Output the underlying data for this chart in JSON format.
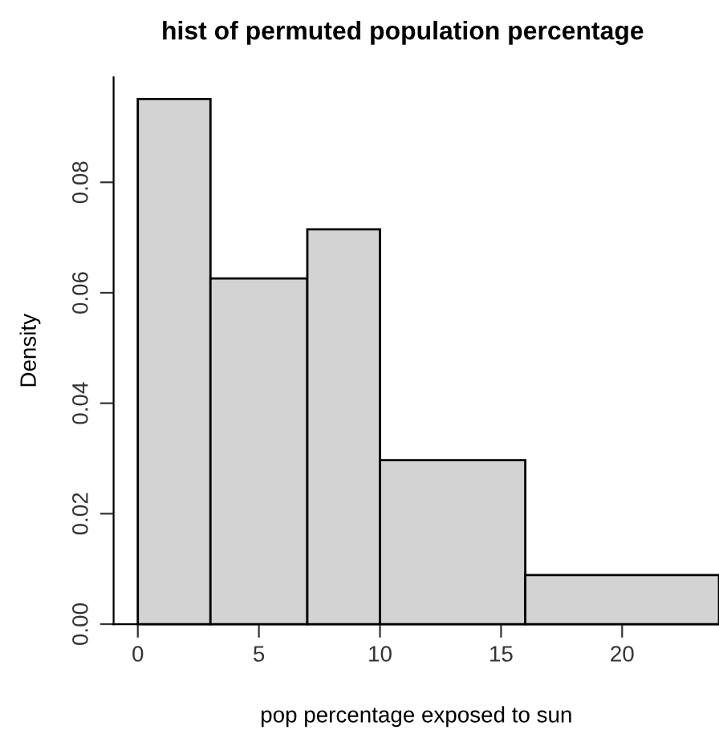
{
  "chart_data": {
    "type": "histogram",
    "title": "hist of permuted population percentage",
    "xlabel": "pop percentage exposed to sun",
    "ylabel": "Density",
    "bins": [
      0,
      3,
      7,
      10,
      16,
      24
    ],
    "values": [
      0.0951,
      0.0626,
      0.0715,
      0.0297,
      0.0089
    ],
    "color": "#d3d3d3",
    "xlim": [
      -1,
      24
    ],
    "ylim": [
      0,
      0.099
    ],
    "xticks": [
      0,
      5,
      10,
      15,
      20
    ],
    "yticks": [
      {
        "value": 0,
        "label": "0.00"
      },
      {
        "value": 0.02,
        "label": "0.02"
      },
      {
        "value": 0.04,
        "label": "0.04"
      },
      {
        "value": 0.06,
        "label": "0.06"
      },
      {
        "value": 0.08,
        "label": "0.08"
      }
    ],
    "grid": false
  }
}
